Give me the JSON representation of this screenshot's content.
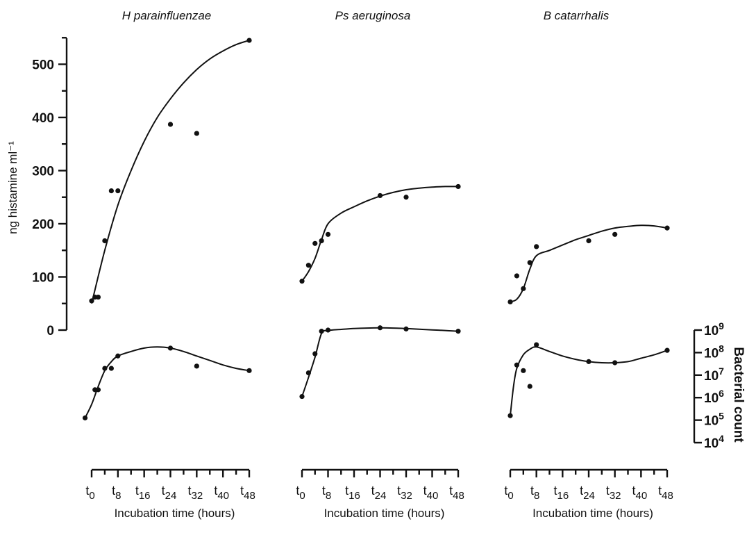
{
  "chart_data": {
    "type": "scatter",
    "left_axis": {
      "label": "ng histamine ml⁻¹",
      "ticks": [
        "0",
        "100",
        "200",
        "300",
        "400",
        "500"
      ],
      "tick_values": [
        0,
        100,
        200,
        300,
        400,
        500
      ],
      "ylim": [
        0,
        550
      ]
    },
    "right_axis": {
      "label": "Bacterial count",
      "scale": "log",
      "exponents": [
        4,
        5,
        6,
        7,
        8,
        9
      ],
      "ylim_log10": [
        4,
        9
      ]
    },
    "x_axis": {
      "label": "Incubation time (hours)",
      "tick_values": [
        0,
        8,
        16,
        24,
        32,
        40,
        48
      ],
      "tick_subscripts": [
        "0",
        "8",
        "16",
        "24",
        "32",
        "40",
        "48"
      ],
      "tick_prefix": "t",
      "xlim": [
        0,
        48
      ]
    },
    "panels": [
      {
        "title": "H parainfluenzae",
        "histamine": {
          "x": [
            0,
            1,
            2,
            4,
            6,
            8,
            24,
            32,
            48
          ],
          "y": [
            55,
            62,
            62,
            168,
            262,
            262,
            387,
            370,
            545
          ]
        },
        "histamine_curve": {
          "x": [
            0,
            4,
            8,
            12,
            16,
            20,
            24,
            28,
            32,
            36,
            40,
            44,
            48
          ],
          "y": [
            50,
            150,
            235,
            300,
            355,
            400,
            435,
            465,
            490,
            510,
            525,
            537,
            545
          ]
        },
        "bacterial_count_log10": {
          "x": [
            -2,
            1,
            2,
            4,
            6,
            8,
            24,
            32,
            48
          ],
          "y": [
            5.1,
            6.35,
            6.35,
            7.3,
            7.3,
            7.85,
            8.2,
            7.4,
            7.2
          ]
        },
        "bacterial_curve_log10": {
          "x": [
            -2,
            0,
            2,
            4,
            6,
            8,
            12,
            16,
            20,
            24,
            28,
            32,
            36,
            40,
            44,
            48
          ],
          "y": [
            5.1,
            5.7,
            6.5,
            7.2,
            7.6,
            7.85,
            8.05,
            8.2,
            8.25,
            8.2,
            8.05,
            7.85,
            7.65,
            7.45,
            7.3,
            7.2
          ]
        }
      },
      {
        "title": "Ps aeruginosa",
        "histamine": {
          "x": [
            0,
            2,
            4,
            6,
            8,
            24,
            32,
            48
          ],
          "y": [
            92,
            122,
            163,
            168,
            180,
            253,
            250,
            270
          ]
        },
        "histamine_curve": {
          "x": [
            0,
            2,
            4,
            6,
            8,
            12,
            16,
            20,
            24,
            28,
            32,
            36,
            40,
            44,
            48
          ],
          "y": [
            92,
            110,
            135,
            170,
            200,
            220,
            232,
            243,
            252,
            259,
            264,
            267,
            269,
            270,
            270
          ]
        },
        "bacterial_count_log10": {
          "x": [
            0,
            2,
            4,
            6,
            8,
            24,
            32,
            48
          ],
          "y": [
            6.05,
            7.1,
            7.95,
            8.95,
            9.0,
            9.1,
            9.05,
            8.95
          ]
        },
        "bacterial_curve_log10": {
          "x": [
            0,
            2,
            4,
            6,
            8,
            12,
            16,
            20,
            24,
            28,
            32,
            36,
            40,
            44,
            48
          ],
          "y": [
            6.05,
            6.9,
            7.8,
            8.85,
            8.98,
            9.03,
            9.07,
            9.09,
            9.1,
            9.09,
            9.07,
            9.04,
            9.01,
            8.98,
            8.95
          ]
        }
      },
      {
        "title": "B catarrhalis",
        "histamine": {
          "x": [
            0,
            2,
            4,
            6,
            8,
            24,
            32,
            48
          ],
          "y": [
            53,
            102,
            78,
            127,
            157,
            168,
            180,
            192
          ]
        },
        "histamine_curve": {
          "x": [
            0,
            2,
            4,
            6,
            8,
            12,
            16,
            20,
            24,
            28,
            32,
            36,
            40,
            44,
            48
          ],
          "y": [
            53,
            58,
            78,
            115,
            140,
            150,
            160,
            170,
            178,
            186,
            192,
            195,
            197,
            196,
            192
          ]
        },
        "bacterial_count_log10": {
          "x": [
            0,
            2,
            4,
            6,
            8,
            24,
            32,
            48
          ],
          "y": [
            5.2,
            7.45,
            7.2,
            6.5,
            8.35,
            7.6,
            7.55,
            8.1
          ]
        },
        "bacterial_curve_log10": {
          "x": [
            0,
            1,
            2,
            4,
            6,
            8,
            12,
            16,
            20,
            24,
            28,
            32,
            36,
            40,
            44,
            48
          ],
          "y": [
            5.2,
            6.5,
            7.3,
            7.9,
            8.15,
            8.25,
            8.05,
            7.85,
            7.7,
            7.6,
            7.55,
            7.55,
            7.6,
            7.75,
            7.9,
            8.1
          ]
        }
      }
    ]
  }
}
